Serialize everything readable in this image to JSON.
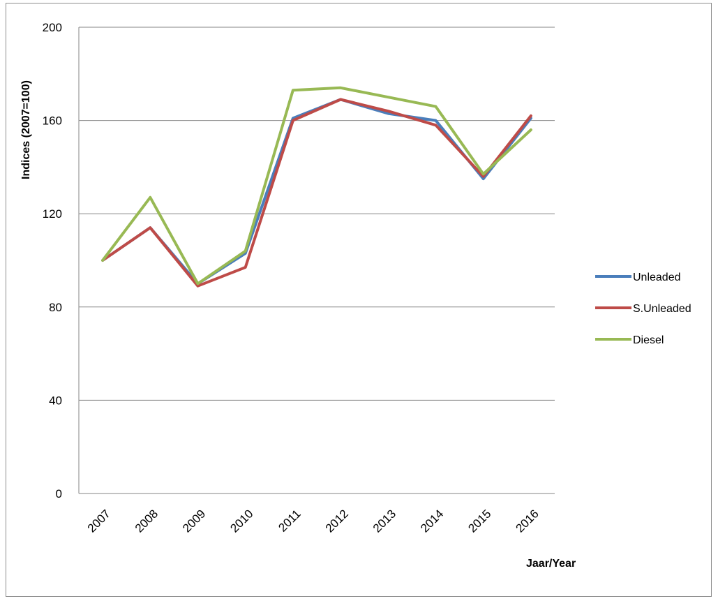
{
  "chart_data": {
    "type": "line",
    "title": "",
    "xlabel": "Jaar/Year",
    "ylabel": "Indices (2007=100)",
    "categories": [
      "2007",
      "2008",
      "2009",
      "2010",
      "2011",
      "2012",
      "2013",
      "2014",
      "2015",
      "2016"
    ],
    "ylim": [
      0,
      200
    ],
    "yticks": [
      "0",
      "40",
      "80",
      "120",
      "160",
      "200"
    ],
    "grid": "horizontal",
    "legend_position": "right",
    "series": [
      {
        "name": "Unleaded",
        "color": "#4a7ebb",
        "values": [
          100,
          114,
          90,
          103,
          161,
          169,
          163,
          160,
          135,
          161
        ]
      },
      {
        "name": "S.Unleaded",
        "color": "#be4b48",
        "values": [
          100,
          114,
          89,
          97,
          160,
          169,
          164,
          158,
          136,
          162
        ]
      },
      {
        "name": "Diesel",
        "color": "#98b954",
        "values": [
          100,
          127,
          90,
          104,
          173,
          174,
          170,
          166,
          137,
          156
        ]
      }
    ]
  }
}
